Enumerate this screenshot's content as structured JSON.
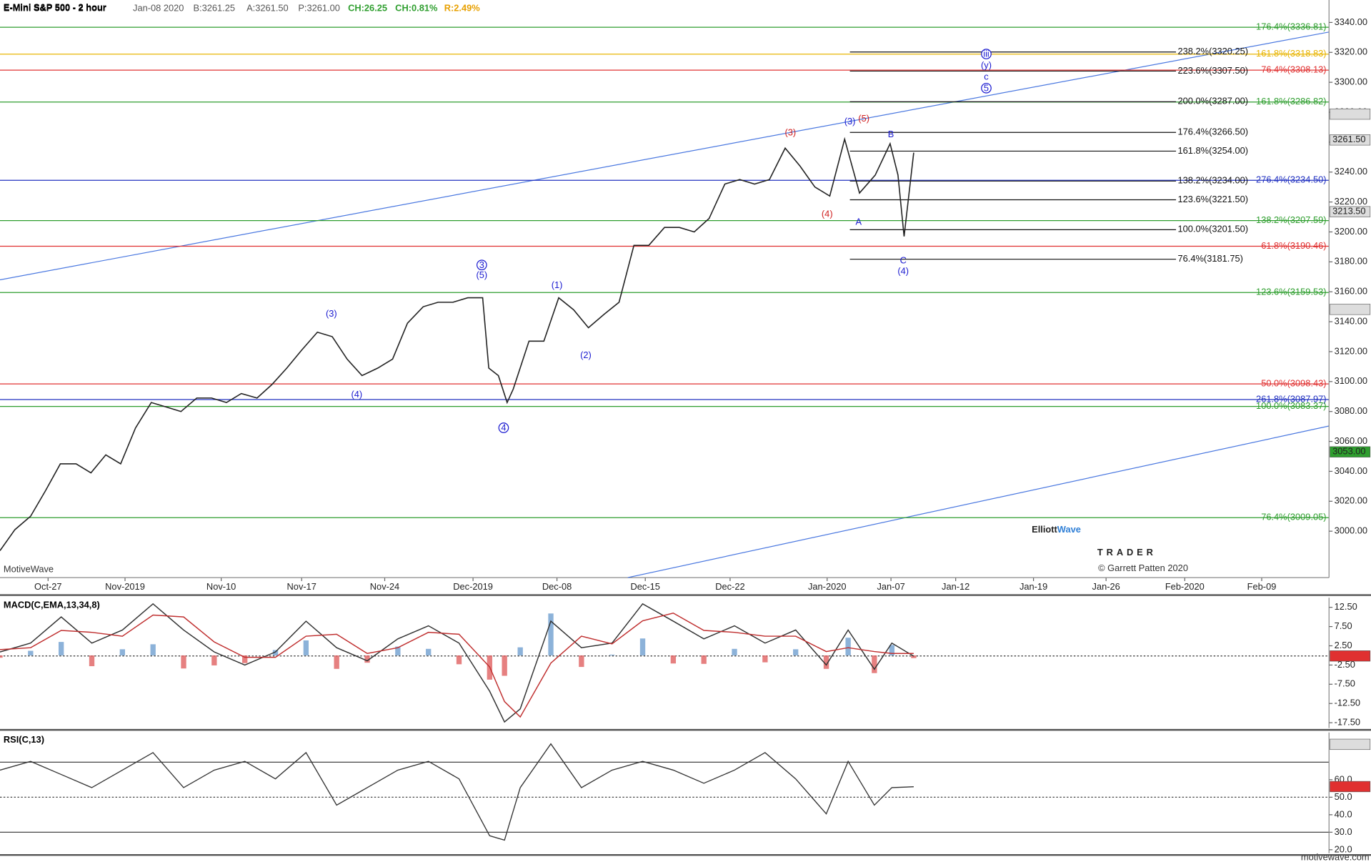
{
  "watermark": {
    "platform": "MotiveWave",
    "logo_a": "Elliott",
    "logo_b": "Wave",
    "logo_sub": "TRADER",
    "copyright": "© Garrett Patten 2020",
    "site": "motivewave.com"
  },
  "chart_data": [
    {
      "type": "line",
      "title": "E-Mini S&P 500 - 2 hour",
      "quote": {
        "date": "Jan-08 2020",
        "bid": "B:3261.25",
        "ask": "A:3261.50",
        "price": "P:3261.00",
        "change": "CH:26.25",
        "change_pct": "CH:0.81%",
        "range": "R:2.49%"
      },
      "x": [
        0,
        17,
        35,
        52,
        69,
        87,
        104,
        121,
        138,
        155,
        173,
        190,
        207,
        225,
        242,
        259,
        276,
        294,
        311,
        328,
        345,
        363,
        380,
        397,
        414,
        432,
        449,
        466,
        484,
        501,
        518,
        535,
        552,
        559,
        570,
        580,
        587,
        605,
        622,
        639,
        656,
        673,
        691,
        708,
        725,
        742,
        760,
        777,
        794,
        811,
        829,
        846,
        863,
        880,
        898,
        915,
        932,
        949,
        966,
        983,
        1001,
        1018,
        1027,
        1034,
        1045
      ],
      "values": [
        2987,
        3001,
        3010,
        3027,
        3045,
        3045,
        3039,
        3051,
        3045,
        3069,
        3086,
        3083,
        3080,
        3089,
        3089,
        3086,
        3092,
        3089,
        3098,
        3109,
        3121,
        3133,
        3130,
        3115,
        3104,
        3109,
        3115,
        3139,
        3150,
        3153,
        3153,
        3156,
        3156,
        3109,
        3104,
        3086,
        3095,
        3127,
        3127,
        3156,
        3148,
        3136,
        3145,
        3153,
        3191,
        3191,
        3203,
        3203,
        3200,
        3209,
        3232,
        3235,
        3232,
        3235,
        3256,
        3244,
        3230,
        3224,
        3262,
        3226,
        3238,
        3259,
        3238,
        3197,
        3253
      ],
      "color": "#222222",
      "xlim": [
        0,
        1520
      ],
      "xticks": [
        {
          "value": 55,
          "label": "Oct-27"
        },
        {
          "value": 143,
          "label": "Nov-2019"
        },
        {
          "value": 253,
          "label": "Nov-10"
        },
        {
          "value": 345,
          "label": "Nov-17"
        },
        {
          "value": 440,
          "label": "Nov-24"
        },
        {
          "value": 541,
          "label": "Dec-2019"
        },
        {
          "value": 637,
          "label": "Dec-08"
        },
        {
          "value": 738,
          "label": "Dec-15"
        },
        {
          "value": 835,
          "label": "Dec-22"
        },
        {
          "value": 946,
          "label": "Jan-2020"
        },
        {
          "value": 1019,
          "label": "Jan-07"
        },
        {
          "value": 1093,
          "label": "Jan-12"
        },
        {
          "value": 1182,
          "label": "Jan-19"
        },
        {
          "value": 1265,
          "label": "Jan-26"
        },
        {
          "value": 1355,
          "label": "Feb-2020"
        },
        {
          "value": 1443,
          "label": "Feb-09"
        }
      ],
      "ylim": [
        2969,
        3355
      ],
      "yticks": [
        {
          "value": 3000,
          "label": "3000.00"
        },
        {
          "value": 3020,
          "label": "3020.00"
        },
        {
          "value": 3040,
          "label": "3040.00"
        },
        {
          "value": 3060,
          "label": "3060.00"
        },
        {
          "value": 3080,
          "label": "3080.00"
        },
        {
          "value": 3100,
          "label": "3100.00"
        },
        {
          "value": 3120,
          "label": "3120.00"
        },
        {
          "value": 3140,
          "label": "3140.00"
        },
        {
          "value": 3160,
          "label": "3160.00"
        },
        {
          "value": 3180,
          "label": "3180.00"
        },
        {
          "value": 3200,
          "label": "3200.00"
        },
        {
          "value": 3220,
          "label": "3220.00"
        },
        {
          "value": 3240,
          "label": "3240.00"
        },
        {
          "value": 3260,
          "label": "3260.00"
        },
        {
          "value": 3280,
          "label": "3280.00"
        },
        {
          "value": 3300,
          "label": "3300.00"
        },
        {
          "value": 3320,
          "label": "3320.00"
        },
        {
          "value": 3340,
          "label": "3340.00"
        }
      ],
      "price_tags": [
        {
          "value": 3278.75,
          "color": "#dddddd"
        },
        {
          "value": 3261.5,
          "label": "3261.50",
          "color": "#dddddd"
        },
        {
          "value": 3213.5,
          "label": "3213.50",
          "color": "#dddddd"
        },
        {
          "value": 3148.25,
          "color": "#dddddd"
        },
        {
          "value": 3053,
          "label": "3053.00",
          "color": "#2e9e2e"
        }
      ],
      "levels": [
        {
          "label": "176.4%(3336.81)",
          "value": 3336.81,
          "color": "#2e9e2e"
        },
        {
          "label": "161.8%(3318.83)",
          "value": 3318.83,
          "color": "#e8b400"
        },
        {
          "label": "76.4%(3308.13)",
          "value": 3308.13,
          "color": "#e03030"
        },
        {
          "label": "161.8%(3286.82)",
          "value": 3286.82,
          "color": "#2e9e2e"
        },
        {
          "label": "276.4%(3234.50)",
          "value": 3234.5,
          "color": "#2030c0"
        },
        {
          "label": "138.2%(3207.59)",
          "value": 3207.59,
          "color": "#2e9e2e"
        },
        {
          "label": "61.8%(3190.46)",
          "value": 3190.46,
          "color": "#e03030"
        },
        {
          "label": "123.6%(3159.53)",
          "value": 3159.53,
          "color": "#2e9e2e"
        },
        {
          "label": "50.0%(3098.43)",
          "value": 3098.43,
          "color": "#e03030"
        },
        {
          "label": "261.8%(3087.97)",
          "value": 3087.97,
          "color": "#2030c0"
        },
        {
          "label": "100.0%(3083.37)",
          "value": 3083.37,
          "color": "#2e9e2e"
        },
        {
          "label": "76.4%(3009.05)",
          "value": 3009.05,
          "color": "#2e9e2e"
        }
      ],
      "projection": {
        "xrange": [
          972,
          1345
        ],
        "color": "#111111",
        "levels": [
          {
            "label": "238.2%(3320.25)",
            "value": 3320.25
          },
          {
            "label": "223.6%(3307.50)",
            "value": 3307.5
          },
          {
            "label": "200.0%(3287.00)",
            "value": 3287
          },
          {
            "label": "176.4%(3266.50)",
            "value": 3266.5
          },
          {
            "label": "161.8%(3254.00)",
            "value": 3254
          },
          {
            "label": "138.2%(3234.00)",
            "value": 3234
          },
          {
            "label": "123.6%(3221.50)",
            "value": 3221.5
          },
          {
            "label": "100.0%(3201.50)",
            "value": 3201.5
          },
          {
            "label": "76.4%(3181.75)",
            "value": 3181.75
          }
        ]
      },
      "trendlines": [
        {
          "x": [
            0,
            1520
          ],
          "y": [
            3168.0,
            3333.6
          ],
          "color": "#4a78e0"
        },
        {
          "x": [
            718,
            1520
          ],
          "y": [
            2969,
            3070.3
          ],
          "color": "#4a78e0"
        }
      ],
      "waves": [
        {
          "label": "(3)",
          "x": 379,
          "y": 3145.2,
          "color": "#1a1ad0",
          "circle": false
        },
        {
          "label": "(4)",
          "x": 408,
          "y": 3091.3,
          "color": "#1a1ad0",
          "circle": false
        },
        {
          "label": "3",
          "x": 551,
          "y": 3177.9,
          "color": "#1a1ad0",
          "circle": true
        },
        {
          "label": "(5)",
          "x": 551,
          "y": 3171,
          "color": "#1a1ad0",
          "circle": false
        },
        {
          "label": "4",
          "x": 576,
          "y": 3069.1,
          "color": "#1a1ad0",
          "circle": true
        },
        {
          "label": "(1)",
          "x": 637,
          "y": 3164.5,
          "color": "#1a1ad0",
          "circle": false
        },
        {
          "label": "(2)",
          "x": 670,
          "y": 3117.6,
          "color": "#1a1ad0",
          "circle": false
        },
        {
          "label": "(3)",
          "x": 904,
          "y": 3266.3,
          "color": "#d02020",
          "circle": false
        },
        {
          "label": "(4)",
          "x": 946,
          "y": 3211.9,
          "color": "#d02020",
          "circle": false
        },
        {
          "label": "(3)",
          "x": 972,
          "y": 3273.9,
          "color": "#1a1ad0",
          "circle": false
        },
        {
          "label": "(5)",
          "x": 988,
          "y": 3275.6,
          "color": "#d02020",
          "circle": false
        },
        {
          "label": "B",
          "x": 1019,
          "y": 3265.1,
          "color": "#1a1ad0",
          "circle": false
        },
        {
          "label": "A",
          "x": 982,
          "y": 3206.6,
          "color": "#1a1ad0",
          "circle": false
        },
        {
          "label": "C",
          "x": 1033,
          "y": 3180.8,
          "color": "#1a1ad0",
          "circle": false
        },
        {
          "label": "(4)",
          "x": 1033,
          "y": 3173.8,
          "color": "#1a1ad0",
          "circle": false
        },
        {
          "label": "iii",
          "x": 1128,
          "y": 3318.9,
          "color": "#1a1ad0",
          "circle": true
        },
        {
          "label": "(y)",
          "x": 1128,
          "y": 3311.3,
          "color": "#1a1ad0",
          "circle": false
        },
        {
          "label": "c",
          "x": 1128,
          "y": 3303.7,
          "color": "#1a1ad0",
          "circle": false
        },
        {
          "label": "5",
          "x": 1128,
          "y": 3296.1,
          "color": "#1a1ad0",
          "circle": true
        }
      ]
    },
    {
      "type": "macd",
      "title": "MACD(C,EMA,13,34,8)",
      "x": [
        0,
        35,
        70,
        105,
        140,
        175,
        210,
        245,
        280,
        315,
        350,
        385,
        420,
        455,
        490,
        525,
        560,
        577,
        595,
        630,
        665,
        700,
        735,
        770,
        805,
        840,
        875,
        910,
        945,
        970,
        1000,
        1020,
        1045
      ],
      "series": [
        {
          "color": "#333333",
          "values": [
            0.9,
            3.2,
            10,
            3.2,
            6.6,
            13.4,
            6.6,
            0.9,
            -2.5,
            0.9,
            8.9,
            2.0,
            -1.4,
            4.3,
            7.7,
            3.2,
            -9.3,
            -17.3,
            -13.9,
            8.9,
            2.0,
            3.2,
            13.4,
            8.9,
            4.3,
            7.7,
            3.2,
            6.6,
            -2.5,
            6.6,
            -3.6,
            3.2,
            -0.2
          ]
        },
        {
          "color": "#c03030",
          "values": [
            1.5,
            2.0,
            6.5,
            6.0,
            5.0,
            10.5,
            10.0,
            3.5,
            -0.5,
            -0.5,
            5.0,
            5.5,
            0.5,
            2.0,
            6.0,
            5.5,
            -3.0,
            -12.0,
            -16.0,
            -2.0,
            5.0,
            3.0,
            9.0,
            11.0,
            6.5,
            6.0,
            5.0,
            5.0,
            1.0,
            2.0,
            1.0,
            0.5,
            0.5
          ]
        }
      ],
      "histogram": {
        "values": [
          -0.6,
          1.2,
          3.5,
          -2.8,
          1.6,
          2.9,
          -3.4,
          -2.6,
          -2.0,
          1.4,
          3.9,
          -3.5,
          -1.9,
          2.3,
          1.7,
          -2.3,
          -6.3,
          -5.3,
          2.1,
          10.9,
          -3.0,
          0.2,
          4.4,
          -2.1,
          -2.2,
          1.7,
          -1.8,
          1.6,
          -3.5,
          4.6,
          -4.6,
          2.7,
          -0.7
        ],
        "up_color": "#6f9fd0",
        "down_color": "#e06060"
      },
      "xlim": [
        0,
        1520
      ],
      "ylim": [
        -18.9,
        15
      ],
      "yticks": [
        {
          "value": 12.5,
          "label": "12.50"
        },
        {
          "value": 7.5,
          "label": "7.50"
        },
        {
          "value": 2.5,
          "label": "2.50"
        },
        {
          "value": -2.5,
          "label": "-2.50"
        },
        {
          "value": -7.5,
          "label": "-7.50"
        },
        {
          "value": -12.5,
          "label": "-12.50"
        },
        {
          "value": -17.5,
          "label": "-17.50"
        }
      ],
      "price_tags": [
        {
          "value": -0.14,
          "color": "#e03030"
        }
      ]
    },
    {
      "type": "rsi",
      "title": "RSI(C,13)",
      "x": [
        0,
        35,
        70,
        105,
        140,
        175,
        210,
        245,
        280,
        315,
        350,
        385,
        420,
        455,
        490,
        525,
        560,
        577,
        595,
        630,
        665,
        700,
        735,
        770,
        805,
        840,
        875,
        910,
        945,
        970,
        1000,
        1020,
        1045
      ],
      "values": [
        65.5,
        70.5,
        63,
        55.5,
        65.5,
        75.5,
        55.5,
        65.5,
        70.5,
        60.5,
        75.5,
        45.5,
        55.5,
        65.5,
        70.5,
        60.5,
        28,
        25.5,
        55.5,
        80.5,
        55.5,
        65.5,
        70.5,
        65.5,
        58,
        65.5,
        75.5,
        60.5,
        40.5,
        70.5,
        45.5,
        55.5,
        56
      ],
      "color": "#333333",
      "xlim": [
        0,
        1520
      ],
      "ylim": [
        18,
        87
      ],
      "yticks": [
        {
          "value": 20,
          "label": "20.0"
        },
        {
          "value": 30,
          "label": "30.0"
        },
        {
          "value": 40,
          "label": "40.0"
        },
        {
          "value": 50,
          "label": "50.0"
        },
        {
          "value": 60,
          "label": "60.0"
        }
      ],
      "bands": [
        30,
        50,
        70
      ],
      "price_tags": [
        {
          "value": 80.22,
          "color": "#dddddd"
        },
        {
          "value": 56.1,
          "color": "#e03030"
        }
      ]
    }
  ]
}
